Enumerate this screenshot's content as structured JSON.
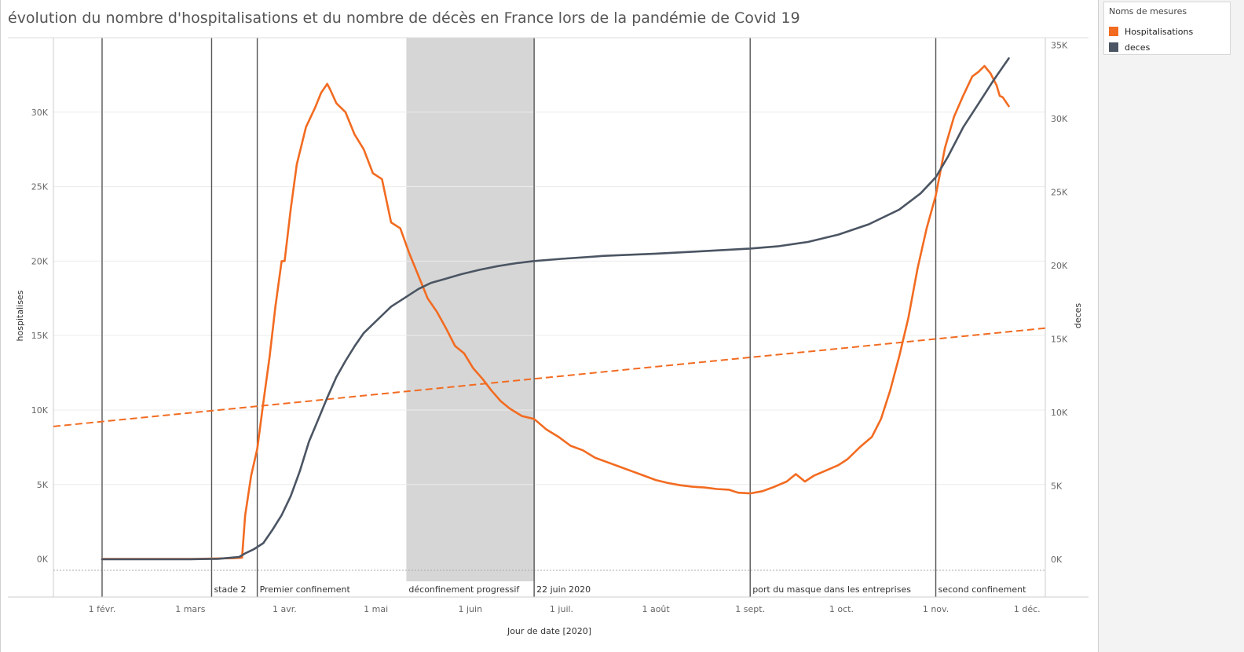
{
  "title": "évolution du nombre d'hospitalisations et du nombre de décès en France lors de la pandémie de Covid 19",
  "legend": {
    "title": "Noms de mesures",
    "items": [
      {
        "label": "Hospitalisations",
        "color": "#f26b21"
      },
      {
        "label": "deces",
        "color": "#4b5563"
      }
    ]
  },
  "colors": {
    "hosp": "#f26b21",
    "deces": "#4b5563",
    "band": "#d6d6d6",
    "grid": "#ececec"
  },
  "chart_data": {
    "type": "line",
    "xlabel": "Jour de date [2020]",
    "ylabel_left": "hospitalises",
    "ylabel_right": "deces",
    "x_start": "2020-01-16",
    "x_end": "2020-12-07",
    "ylim_left": [
      -1500,
      35000
    ],
    "ylim_right": [
      -1500,
      35500
    ],
    "x_ticks": [
      {
        "date": "2020-02-01",
        "label": "1 févr."
      },
      {
        "date": "2020-03-01",
        "label": "1 mars"
      },
      {
        "date": "2020-04-01",
        "label": "1 avr."
      },
      {
        "date": "2020-05-01",
        "label": "1 mai"
      },
      {
        "date": "2020-06-01",
        "label": "1 juin"
      },
      {
        "date": "2020-07-01",
        "label": "1 juil."
      },
      {
        "date": "2020-08-01",
        "label": "1 août"
      },
      {
        "date": "2020-09-01",
        "label": "1 sept."
      },
      {
        "date": "2020-10-01",
        "label": "1 oct."
      },
      {
        "date": "2020-11-01",
        "label": "1 nov."
      },
      {
        "date": "2020-12-01",
        "label": "1 déc."
      }
    ],
    "y_ticks_left": [
      {
        "value": 0,
        "label": "0K"
      },
      {
        "value": 5000,
        "label": "5K"
      },
      {
        "value": 10000,
        "label": "10K"
      },
      {
        "value": 15000,
        "label": "15K"
      },
      {
        "value": 20000,
        "label": "20K"
      },
      {
        "value": 25000,
        "label": "25K"
      },
      {
        "value": 30000,
        "label": "30K"
      }
    ],
    "y_ticks_right": [
      {
        "value": 0,
        "label": "0K"
      },
      {
        "value": 5000,
        "label": "5K"
      },
      {
        "value": 10000,
        "label": "10K"
      },
      {
        "value": 15000,
        "label": "15K"
      },
      {
        "value": 20000,
        "label": "20K"
      },
      {
        "value": 25000,
        "label": "25K"
      },
      {
        "value": 30000,
        "label": "30K"
      },
      {
        "value": 35000,
        "label": "35K"
      }
    ],
    "reference_lines": [
      {
        "date": "2020-02-01",
        "label": ""
      },
      {
        "date": "2020-03-08",
        "label": "stade 2"
      },
      {
        "date": "2020-03-23",
        "label": "Premier confinement"
      },
      {
        "date": "2020-06-22",
        "label": "22 juin 2020"
      },
      {
        "date": "2020-09-01",
        "label": "port du masque dans les entreprises"
      },
      {
        "date": "2020-11-01",
        "label": "second confinement"
      }
    ],
    "band": {
      "start": "2020-05-11",
      "end": "2020-06-22",
      "label": "déconfinement progressif"
    },
    "trend_line": {
      "series": "Hospitalisations",
      "start": {
        "date": "2020-01-16",
        "value": 8900
      },
      "end": {
        "date": "2020-12-07",
        "value": 15500
      }
    },
    "series": [
      {
        "name": "Hospitalisations",
        "axis": "left",
        "points": [
          [
            "2020-02-01",
            0
          ],
          [
            "2020-03-01",
            0
          ],
          [
            "2020-03-15",
            50
          ],
          [
            "2020-03-18",
            80
          ],
          [
            "2020-03-19",
            2900
          ],
          [
            "2020-03-21",
            5600
          ],
          [
            "2020-03-23",
            7400
          ],
          [
            "2020-03-25",
            10500
          ],
          [
            "2020-03-27",
            13500
          ],
          [
            "2020-03-29",
            17000
          ],
          [
            "2020-03-31",
            20000
          ],
          [
            "2020-04-01",
            20000
          ],
          [
            "2020-04-03",
            23500
          ],
          [
            "2020-04-05",
            26500
          ],
          [
            "2020-04-08",
            29000
          ],
          [
            "2020-04-11",
            30300
          ],
          [
            "2020-04-13",
            31300
          ],
          [
            "2020-04-15",
            31900
          ],
          [
            "2020-04-16",
            31500
          ],
          [
            "2020-04-18",
            30600
          ],
          [
            "2020-04-21",
            30000
          ],
          [
            "2020-04-24",
            28500
          ],
          [
            "2020-04-27",
            27500
          ],
          [
            "2020-04-30",
            25900
          ],
          [
            "2020-05-03",
            25500
          ],
          [
            "2020-05-06",
            22600
          ],
          [
            "2020-05-09",
            22200
          ],
          [
            "2020-05-12",
            20500
          ],
          [
            "2020-05-15",
            19000
          ],
          [
            "2020-05-18",
            17500
          ],
          [
            "2020-05-21",
            16600
          ],
          [
            "2020-05-24",
            15500
          ],
          [
            "2020-05-27",
            14300
          ],
          [
            "2020-05-30",
            13800
          ],
          [
            "2020-06-02",
            12800
          ],
          [
            "2020-06-05",
            12100
          ],
          [
            "2020-06-08",
            11300
          ],
          [
            "2020-06-11",
            10600
          ],
          [
            "2020-06-14",
            10100
          ],
          [
            "2020-06-18",
            9600
          ],
          [
            "2020-06-22",
            9400
          ],
          [
            "2020-06-26",
            8700
          ],
          [
            "2020-06-30",
            8200
          ],
          [
            "2020-07-04",
            7600
          ],
          [
            "2020-07-08",
            7300
          ],
          [
            "2020-07-12",
            6800
          ],
          [
            "2020-07-16",
            6500
          ],
          [
            "2020-07-20",
            6200
          ],
          [
            "2020-07-24",
            5900
          ],
          [
            "2020-07-28",
            5600
          ],
          [
            "2020-08-01",
            5300
          ],
          [
            "2020-08-05",
            5100
          ],
          [
            "2020-08-09",
            4950
          ],
          [
            "2020-08-13",
            4850
          ],
          [
            "2020-08-17",
            4800
          ],
          [
            "2020-08-21",
            4700
          ],
          [
            "2020-08-25",
            4650
          ],
          [
            "2020-08-28",
            4450
          ],
          [
            "2020-09-01",
            4400
          ],
          [
            "2020-09-05",
            4550
          ],
          [
            "2020-09-09",
            4850
          ],
          [
            "2020-09-13",
            5200
          ],
          [
            "2020-09-16",
            5700
          ],
          [
            "2020-09-19",
            5200
          ],
          [
            "2020-09-22",
            5600
          ],
          [
            "2020-09-26",
            5950
          ],
          [
            "2020-09-30",
            6300
          ],
          [
            "2020-10-03",
            6700
          ],
          [
            "2020-10-07",
            7500
          ],
          [
            "2020-10-11",
            8200
          ],
          [
            "2020-10-14",
            9400
          ],
          [
            "2020-10-17",
            11300
          ],
          [
            "2020-10-20",
            13600
          ],
          [
            "2020-10-23",
            16200
          ],
          [
            "2020-10-26",
            19500
          ],
          [
            "2020-10-29",
            22200
          ],
          [
            "2020-11-01",
            24400
          ],
          [
            "2020-11-04",
            27600
          ],
          [
            "2020-11-07",
            29700
          ],
          [
            "2020-11-10",
            31100
          ],
          [
            "2020-11-13",
            32400
          ],
          [
            "2020-11-15",
            32700
          ],
          [
            "2020-11-17",
            33100
          ],
          [
            "2020-11-19",
            32600
          ],
          [
            "2020-11-21",
            31800
          ],
          [
            "2020-11-22",
            31100
          ],
          [
            "2020-11-23",
            31000
          ],
          [
            "2020-11-25",
            30400
          ]
        ]
      },
      {
        "name": "deces",
        "axis": "right",
        "points": [
          [
            "2020-02-01",
            0
          ],
          [
            "2020-03-01",
            0
          ],
          [
            "2020-03-10",
            30
          ],
          [
            "2020-03-17",
            150
          ],
          [
            "2020-03-19",
            400
          ],
          [
            "2020-03-22",
            700
          ],
          [
            "2020-03-25",
            1100
          ],
          [
            "2020-03-28",
            2000
          ],
          [
            "2020-03-31",
            3000
          ],
          [
            "2020-04-03",
            4300
          ],
          [
            "2020-04-06",
            6000
          ],
          [
            "2020-04-09",
            8000
          ],
          [
            "2020-04-12",
            9500
          ],
          [
            "2020-04-15",
            11000
          ],
          [
            "2020-04-18",
            12400
          ],
          [
            "2020-04-21",
            13500
          ],
          [
            "2020-04-24",
            14500
          ],
          [
            "2020-04-27",
            15400
          ],
          [
            "2020-04-30",
            16000
          ],
          [
            "2020-05-03",
            16600
          ],
          [
            "2020-05-06",
            17200
          ],
          [
            "2020-05-09",
            17600
          ],
          [
            "2020-05-12",
            18000
          ],
          [
            "2020-05-15",
            18400
          ],
          [
            "2020-05-19",
            18800
          ],
          [
            "2020-05-24",
            19100
          ],
          [
            "2020-05-29",
            19400
          ],
          [
            "2020-06-04",
            19700
          ],
          [
            "2020-06-10",
            19950
          ],
          [
            "2020-06-16",
            20150
          ],
          [
            "2020-06-22",
            20300
          ],
          [
            "2020-07-01",
            20450
          ],
          [
            "2020-07-15",
            20650
          ],
          [
            "2020-08-01",
            20800
          ],
          [
            "2020-08-15",
            20950
          ],
          [
            "2020-09-01",
            21150
          ],
          [
            "2020-09-10",
            21300
          ],
          [
            "2020-09-20",
            21600
          ],
          [
            "2020-09-30",
            22100
          ],
          [
            "2020-10-10",
            22800
          ],
          [
            "2020-10-20",
            23800
          ],
          [
            "2020-10-27",
            24900
          ],
          [
            "2020-11-01",
            26000
          ],
          [
            "2020-11-05",
            27400
          ],
          [
            "2020-11-10",
            29400
          ],
          [
            "2020-11-15",
            31000
          ],
          [
            "2020-11-20",
            32600
          ],
          [
            "2020-11-25",
            34100
          ]
        ]
      }
    ]
  }
}
